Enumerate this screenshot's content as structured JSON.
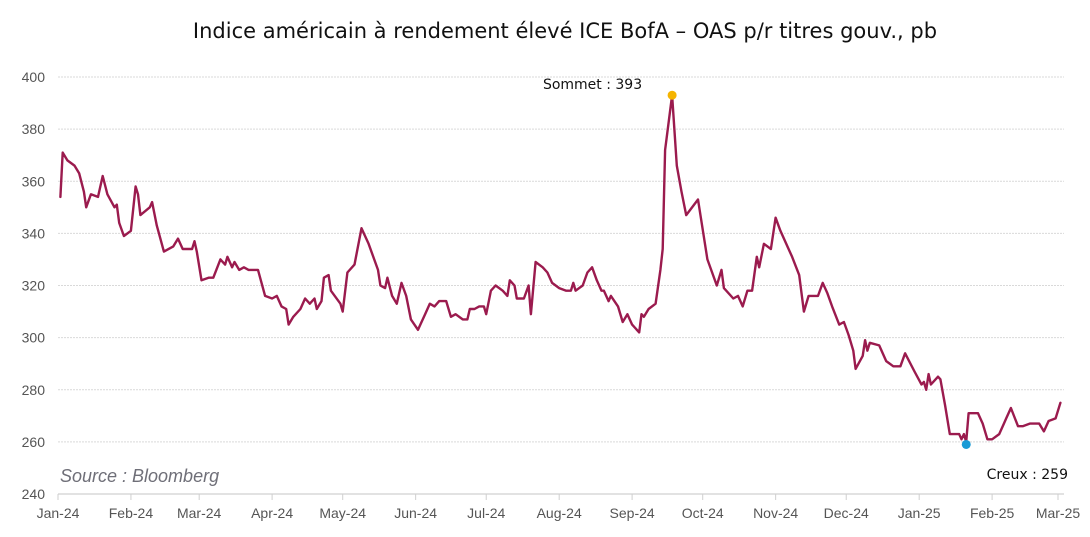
{
  "chart_data": {
    "type": "line",
    "title": "Indice américain à rendement élevé ICE BofA – OAS p/r titres gouv., pb",
    "xlabel": "",
    "ylabel": "",
    "ylim": [
      240,
      400
    ],
    "yticks": [
      240,
      260,
      280,
      300,
      320,
      340,
      360,
      380,
      400
    ],
    "xlim": [
      "2024-01-01",
      "2025-03-01"
    ],
    "xticks": [
      {
        "date": "2024-01-01",
        "label": "Jan-24"
      },
      {
        "date": "2024-02-01",
        "label": "Feb-24"
      },
      {
        "date": "2024-03-01",
        "label": "Mar-24"
      },
      {
        "date": "2024-04-01",
        "label": "Apr-24"
      },
      {
        "date": "2024-05-01",
        "label": "May-24"
      },
      {
        "date": "2024-06-01",
        "label": "Jun-24"
      },
      {
        "date": "2024-07-01",
        "label": "Jul-24"
      },
      {
        "date": "2024-08-01",
        "label": "Aug-24"
      },
      {
        "date": "2024-09-01",
        "label": "Sep-24"
      },
      {
        "date": "2024-10-01",
        "label": "Oct-24"
      },
      {
        "date": "2024-11-01",
        "label": "Nov-24"
      },
      {
        "date": "2024-12-01",
        "label": "Dec-24"
      },
      {
        "date": "2025-01-01",
        "label": "Jan-25"
      },
      {
        "date": "2025-02-01",
        "label": "Feb-25"
      },
      {
        "date": "2025-03-01",
        "label": "Mar-25"
      }
    ],
    "grid": true,
    "legend": "none",
    "series": [
      {
        "name": "ICE BofA US High Yield OAS",
        "color": "#9b1b4e",
        "points": [
          [
            "2024-01-02",
            354
          ],
          [
            "2024-01-03",
            371
          ],
          [
            "2024-01-05",
            368
          ],
          [
            "2024-01-08",
            366
          ],
          [
            "2024-01-10",
            363
          ],
          [
            "2024-01-12",
            356
          ],
          [
            "2024-01-13",
            350
          ],
          [
            "2024-01-15",
            355
          ],
          [
            "2024-01-18",
            354
          ],
          [
            "2024-01-20",
            362
          ],
          [
            "2024-01-22",
            355
          ],
          [
            "2024-01-25",
            350
          ],
          [
            "2024-01-26",
            351
          ],
          [
            "2024-01-27",
            344
          ],
          [
            "2024-01-29",
            339
          ],
          [
            "2024-02-01",
            341
          ],
          [
            "2024-02-03",
            358
          ],
          [
            "2024-02-04",
            355
          ],
          [
            "2024-02-05",
            347
          ],
          [
            "2024-02-09",
            350
          ],
          [
            "2024-02-10",
            352
          ],
          [
            "2024-02-12",
            343
          ],
          [
            "2024-02-15",
            333
          ],
          [
            "2024-02-19",
            335
          ],
          [
            "2024-02-21",
            338
          ],
          [
            "2024-02-23",
            334
          ],
          [
            "2024-02-27",
            334
          ],
          [
            "2024-02-28",
            337
          ],
          [
            "2024-02-29",
            333
          ],
          [
            "2024-03-02",
            322
          ],
          [
            "2024-03-05",
            323
          ],
          [
            "2024-03-07",
            323
          ],
          [
            "2024-03-10",
            330
          ],
          [
            "2024-03-12",
            328
          ],
          [
            "2024-03-13",
            331
          ],
          [
            "2024-03-15",
            327
          ],
          [
            "2024-03-16",
            329
          ],
          [
            "2024-03-18",
            326
          ],
          [
            "2024-03-20",
            327
          ],
          [
            "2024-03-22",
            326
          ],
          [
            "2024-03-26",
            326
          ],
          [
            "2024-03-29",
            316
          ],
          [
            "2024-04-01",
            315
          ],
          [
            "2024-04-03",
            316
          ],
          [
            "2024-04-05",
            312
          ],
          [
            "2024-04-07",
            311
          ],
          [
            "2024-04-08",
            305
          ],
          [
            "2024-04-10",
            308
          ],
          [
            "2024-04-13",
            311
          ],
          [
            "2024-04-15",
            315
          ],
          [
            "2024-04-17",
            313
          ],
          [
            "2024-04-19",
            315
          ],
          [
            "2024-04-20",
            311
          ],
          [
            "2024-04-22",
            314
          ],
          [
            "2024-04-23",
            323
          ],
          [
            "2024-04-25",
            324
          ],
          [
            "2024-04-26",
            318
          ],
          [
            "2024-04-30",
            313
          ],
          [
            "2024-05-01",
            310
          ],
          [
            "2024-05-03",
            325
          ],
          [
            "2024-05-06",
            328
          ],
          [
            "2024-05-09",
            342
          ],
          [
            "2024-05-12",
            336
          ],
          [
            "2024-05-16",
            326
          ],
          [
            "2024-05-17",
            320
          ],
          [
            "2024-05-19",
            319
          ],
          [
            "2024-05-20",
            323
          ],
          [
            "2024-05-22",
            316
          ],
          [
            "2024-05-24",
            313
          ],
          [
            "2024-05-26",
            321
          ],
          [
            "2024-05-28",
            316
          ],
          [
            "2024-05-30",
            307
          ],
          [
            "2024-06-02",
            303
          ],
          [
            "2024-06-05",
            309
          ],
          [
            "2024-06-07",
            313
          ],
          [
            "2024-06-09",
            312
          ],
          [
            "2024-06-11",
            314
          ],
          [
            "2024-06-14",
            314
          ],
          [
            "2024-06-16",
            308
          ],
          [
            "2024-06-18",
            309
          ],
          [
            "2024-06-21",
            307
          ],
          [
            "2024-06-23",
            307
          ],
          [
            "2024-06-24",
            311
          ],
          [
            "2024-06-26",
            311
          ],
          [
            "2024-06-28",
            312
          ],
          [
            "2024-06-30",
            312
          ],
          [
            "2024-07-01",
            309
          ],
          [
            "2024-07-03",
            318
          ],
          [
            "2024-07-05",
            320
          ],
          [
            "2024-07-08",
            318
          ],
          [
            "2024-07-10",
            316
          ],
          [
            "2024-07-11",
            322
          ],
          [
            "2024-07-13",
            320
          ],
          [
            "2024-07-14",
            315
          ],
          [
            "2024-07-17",
            315
          ],
          [
            "2024-07-19",
            320
          ],
          [
            "2024-07-20",
            309
          ],
          [
            "2024-07-22",
            329
          ],
          [
            "2024-07-25",
            327
          ],
          [
            "2024-07-27",
            325
          ],
          [
            "2024-07-29",
            321
          ],
          [
            "2024-08-01",
            319
          ],
          [
            "2024-08-04",
            318
          ],
          [
            "2024-08-06",
            318
          ],
          [
            "2024-08-07",
            321
          ],
          [
            "2024-08-08",
            318
          ],
          [
            "2024-08-11",
            320
          ],
          [
            "2024-08-13",
            325
          ],
          [
            "2024-08-15",
            327
          ],
          [
            "2024-08-17",
            322
          ],
          [
            "2024-08-19",
            318
          ],
          [
            "2024-08-20",
            318
          ],
          [
            "2024-08-22",
            314
          ],
          [
            "2024-08-23",
            316
          ],
          [
            "2024-08-26",
            312
          ],
          [
            "2024-08-28",
            306
          ],
          [
            "2024-08-30",
            309
          ],
          [
            "2024-09-01",
            305
          ],
          [
            "2024-09-04",
            302
          ],
          [
            "2024-09-05",
            309
          ],
          [
            "2024-09-06",
            308
          ],
          [
            "2024-09-08",
            311
          ],
          [
            "2024-09-11",
            313
          ],
          [
            "2024-09-13",
            326
          ],
          [
            "2024-09-14",
            334
          ],
          [
            "2024-09-15",
            372
          ],
          [
            "2024-09-18",
            393
          ],
          [
            "2024-09-20",
            366
          ],
          [
            "2024-09-22",
            356
          ],
          [
            "2024-09-24",
            347
          ],
          [
            "2024-09-29",
            353
          ],
          [
            "2024-10-03",
            330
          ],
          [
            "2024-10-07",
            320
          ],
          [
            "2024-10-09",
            326
          ],
          [
            "2024-10-10",
            319
          ],
          [
            "2024-10-14",
            315
          ],
          [
            "2024-10-16",
            316
          ],
          [
            "2024-10-18",
            312
          ],
          [
            "2024-10-20",
            318
          ],
          [
            "2024-10-22",
            318
          ],
          [
            "2024-10-24",
            331
          ],
          [
            "2024-10-25",
            327
          ],
          [
            "2024-10-27",
            336
          ],
          [
            "2024-10-30",
            334
          ],
          [
            "2024-11-01",
            346
          ],
          [
            "2024-11-03",
            341
          ],
          [
            "2024-11-06",
            335
          ],
          [
            "2024-11-08",
            331
          ],
          [
            "2024-11-11",
            324
          ],
          [
            "2024-11-13",
            310
          ],
          [
            "2024-11-15",
            316
          ],
          [
            "2024-11-19",
            316
          ],
          [
            "2024-11-21",
            321
          ],
          [
            "2024-11-23",
            317
          ],
          [
            "2024-11-25",
            312
          ],
          [
            "2024-11-28",
            305
          ],
          [
            "2024-11-30",
            306
          ],
          [
            "2024-12-02",
            301
          ],
          [
            "2024-12-04",
            295
          ],
          [
            "2024-12-05",
            288
          ],
          [
            "2024-12-08",
            293
          ],
          [
            "2024-12-09",
            299
          ],
          [
            "2024-12-10",
            295
          ],
          [
            "2024-12-11",
            298
          ],
          [
            "2024-12-15",
            297
          ],
          [
            "2024-12-18",
            291
          ],
          [
            "2024-12-21",
            289
          ],
          [
            "2024-12-24",
            289
          ],
          [
            "2024-12-26",
            294
          ],
          [
            "2024-12-30",
            287
          ],
          [
            "2025-01-02",
            282
          ],
          [
            "2025-01-03",
            283
          ],
          [
            "2025-01-04",
            280
          ],
          [
            "2025-01-05",
            286
          ],
          [
            "2025-01-06",
            282
          ],
          [
            "2025-01-09",
            285
          ],
          [
            "2025-01-10",
            284
          ],
          [
            "2025-01-12",
            274
          ],
          [
            "2025-01-14",
            263
          ],
          [
            "2025-01-18",
            263
          ],
          [
            "2025-01-19",
            261
          ],
          [
            "2025-01-20",
            263
          ],
          [
            "2025-01-21",
            260
          ],
          [
            "2025-01-22",
            271
          ],
          [
            "2025-01-26",
            271
          ],
          [
            "2025-01-28",
            267
          ],
          [
            "2025-01-30",
            261
          ],
          [
            "2025-02-01",
            261
          ],
          [
            "2025-02-04",
            263
          ],
          [
            "2025-02-06",
            267
          ],
          [
            "2025-02-07",
            269
          ],
          [
            "2025-02-09",
            273
          ],
          [
            "2025-02-12",
            266
          ],
          [
            "2025-02-14",
            266
          ],
          [
            "2025-02-17",
            267
          ],
          [
            "2025-02-21",
            267
          ],
          [
            "2025-02-23",
            264
          ],
          [
            "2025-02-25",
            268
          ],
          [
            "2025-02-28",
            269
          ],
          [
            "2025-03-02",
            275
          ]
        ]
      }
    ],
    "annotations": [
      {
        "label": "Sommet : 393",
        "value": 393,
        "color": "#f5b400"
      },
      {
        "label": "Creux : 259",
        "value": 259,
        "color": "#1a9bd6"
      }
    ],
    "source": "Source : Bloomberg"
  }
}
